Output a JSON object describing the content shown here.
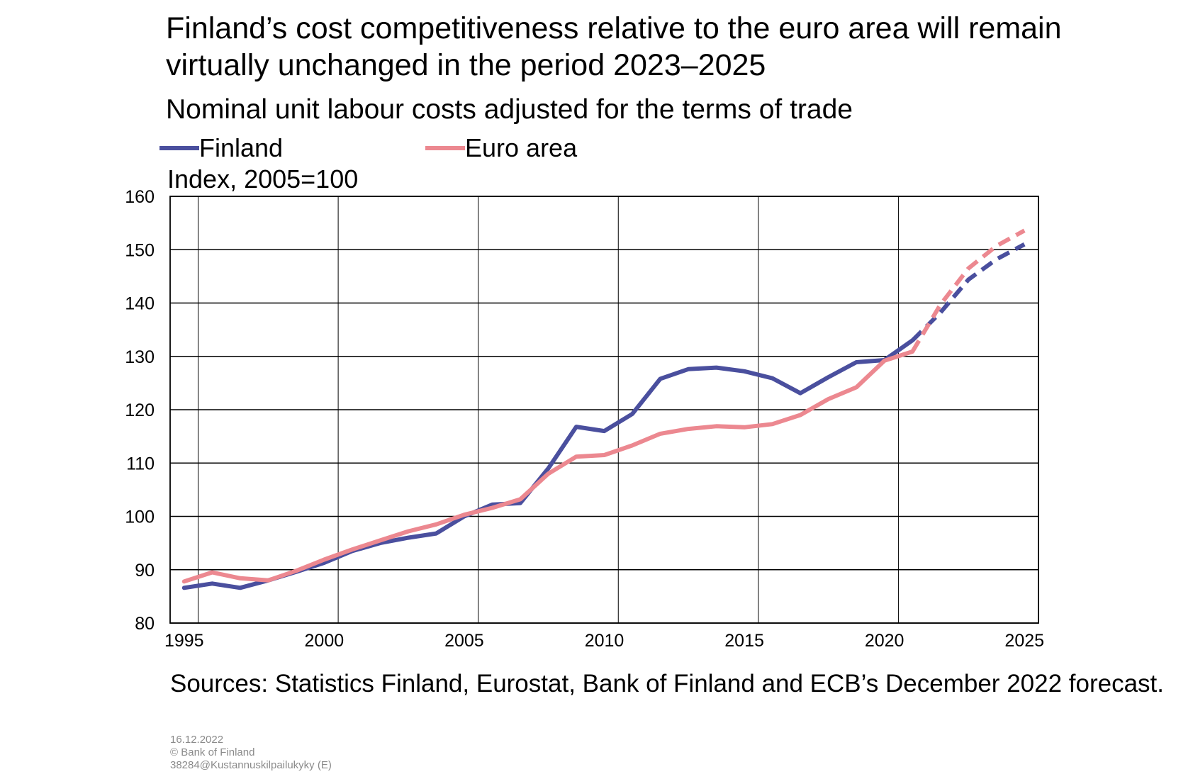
{
  "title": "Finland’s cost competitiveness relative to the euro area will remain virtually unchanged in the period 2023–2025",
  "subtitle": "Nominal unit labour costs adjusted for the terms of trade",
  "unit_label": "Index, 2005=100",
  "legend": [
    {
      "label": "Finland",
      "color": "#4a4f9e"
    },
    {
      "label": "Euro area",
      "color": "#ec8890"
    }
  ],
  "sources": "Sources: Statistics Finland, Eurostat, Bank of Finland and ECB’s December 2022 forecast.",
  "meta": {
    "date": "16.12.2022",
    "copyright": "© Bank of Finland",
    "code": "38284@Kustannuskilpailukyky  (E)"
  },
  "chart_data": {
    "type": "line",
    "ylabel": "Index, 2005=100",
    "xlabel": "",
    "ylim": [
      80,
      160
    ],
    "yticks": [
      80,
      90,
      100,
      110,
      120,
      130,
      140,
      150,
      160
    ],
    "xlim": [
      1994.5,
      2025.5
    ],
    "xticks": [
      1995,
      2000,
      2005,
      2010,
      2015,
      2020,
      2025
    ],
    "grid": true,
    "legend_position": "top",
    "forecast_from": 2022,
    "x": [
      1995,
      1996,
      1997,
      1998,
      1999,
      2000,
      2001,
      2002,
      2003,
      2004,
      2005,
      2006,
      2007,
      2008,
      2009,
      2010,
      2011,
      2012,
      2013,
      2014,
      2015,
      2016,
      2017,
      2018,
      2019,
      2020,
      2021,
      2022,
      2023,
      2024,
      2025
    ],
    "series": [
      {
        "name": "Finland",
        "color": "#4a4f9e",
        "values": [
          86.6,
          87.4,
          86.6,
          88.0,
          89.6,
          91.3,
          93.5,
          95.0,
          96.0,
          96.8,
          100.0,
          102.2,
          102.5,
          109.0,
          116.8,
          116.0,
          119.2,
          125.8,
          127.6,
          127.9,
          127.2,
          125.9,
          123.1,
          126.1,
          128.9,
          129.3,
          133.0,
          138.2,
          144.4,
          148.2,
          151.0
        ]
      },
      {
        "name": "Euro area",
        "color": "#ec8890",
        "values": [
          87.8,
          89.5,
          88.4,
          88.0,
          89.8,
          91.9,
          93.8,
          95.5,
          97.2,
          98.5,
          100.3,
          101.6,
          103.2,
          108.0,
          111.2,
          111.5,
          113.3,
          115.5,
          116.4,
          116.9,
          116.7,
          117.3,
          119.0,
          122.0,
          124.2,
          129.2,
          130.9,
          139.7,
          146.5,
          150.7,
          153.6
        ]
      }
    ]
  }
}
